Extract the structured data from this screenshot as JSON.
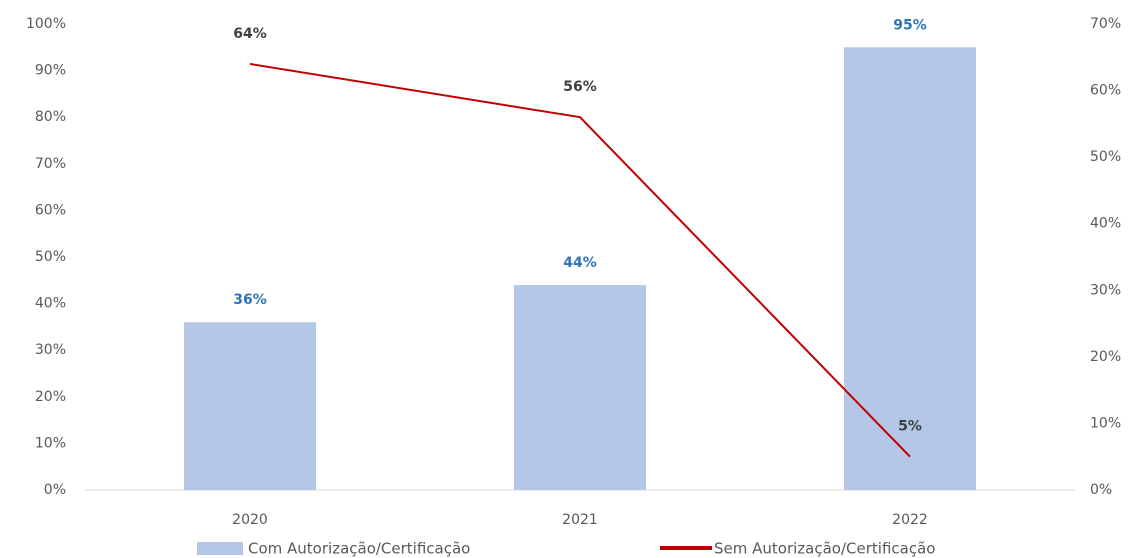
{
  "chart_data": {
    "type": "bar",
    "categories": [
      "2020",
      "2021",
      "2022"
    ],
    "series": [
      {
        "name": "Com Autorização/Certificação",
        "type": "bar",
        "color": "#b4c7e7",
        "label_color": "#2e75b6",
        "values": [
          36,
          44,
          95
        ],
        "value_labels": [
          "36%",
          "44%",
          "95%"
        ]
      },
      {
        "name": "Sem Autorização/Certificação",
        "type": "line",
        "axis": "y2",
        "color": "#c00000",
        "label_color": "#404040",
        "values": [
          64,
          56,
          5
        ],
        "value_labels": [
          "64%",
          "56%",
          "5%"
        ]
      }
    ],
    "ylim": [
      0,
      100
    ],
    "yticks": [
      {
        "value": 0,
        "label": "0%"
      },
      {
        "value": 10,
        "label": "10%"
      },
      {
        "value": 20,
        "label": "20%"
      },
      {
        "value": 30,
        "label": "30%"
      },
      {
        "value": 40,
        "label": "40%"
      },
      {
        "value": 50,
        "label": "50%"
      },
      {
        "value": 60,
        "label": "60%"
      },
      {
        "value": 70,
        "label": "70%"
      },
      {
        "value": 80,
        "label": "80%"
      },
      {
        "value": 90,
        "label": "90%"
      },
      {
        "value": 100,
        "label": "100%"
      }
    ],
    "y2lim": [
      0,
      70
    ],
    "y2ticks": [
      {
        "value": 0,
        "label": "0%"
      },
      {
        "value": 10,
        "label": "10%"
      },
      {
        "value": 20,
        "label": "20%"
      },
      {
        "value": 30,
        "label": "30%"
      },
      {
        "value": 40,
        "label": "40%"
      },
      {
        "value": 50,
        "label": "50%"
      },
      {
        "value": 60,
        "label": "60%"
      },
      {
        "value": 70,
        "label": "70%"
      }
    ],
    "legend": "bottom",
    "grid": false
  }
}
